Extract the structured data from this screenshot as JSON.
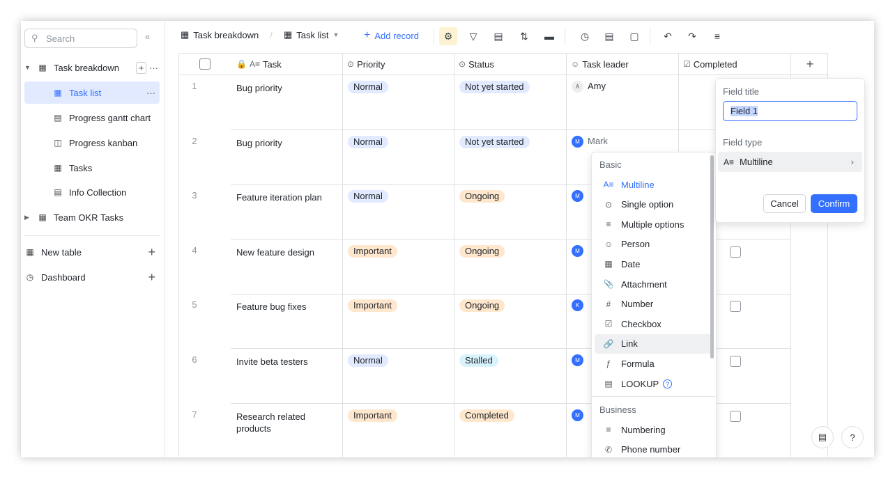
{
  "sidebar": {
    "search_placeholder": "Search",
    "items": [
      {
        "label": "Task breakdown",
        "icon": "table-icon"
      },
      {
        "label": "Task list",
        "icon": "grid-view-icon"
      },
      {
        "label": "Progress gantt chart",
        "icon": "gantt-icon"
      },
      {
        "label": "Progress kanban",
        "icon": "kanban-icon"
      },
      {
        "label": "Tasks",
        "icon": "form-icon"
      },
      {
        "label": "Info Collection",
        "icon": "form-collect-icon"
      },
      {
        "label": "Team OKR Tasks",
        "icon": "table-icon"
      }
    ],
    "new_table": "New table",
    "dashboard": "Dashboard"
  },
  "toolbar": {
    "breadcrumb_table": "Task breakdown",
    "view": "Task list",
    "add_record": "Add record"
  },
  "columns": [
    "Task",
    "Priority",
    "Status",
    "Task leader",
    "Completed"
  ],
  "rows": [
    {
      "n": "1",
      "task": "Bug priority",
      "priority": "Normal",
      "status": "Not yet started",
      "leader": "Amy",
      "avatar": "A"
    },
    {
      "n": "2",
      "task": "Bug priority",
      "priority": "Normal",
      "status": "Not yet started",
      "leader": "Mark",
      "avatar": "M"
    },
    {
      "n": "3",
      "task": "Feature iteration plan",
      "priority": "Normal",
      "status": "Ongoing",
      "leader": "",
      "avatar": "M"
    },
    {
      "n": "4",
      "task": "New feature design",
      "priority": "Important",
      "status": "Ongoing",
      "leader": "",
      "avatar": "M"
    },
    {
      "n": "5",
      "task": "Feature bug fixes",
      "priority": "Important",
      "status": "Ongoing",
      "leader": "",
      "avatar": "K"
    },
    {
      "n": "6",
      "task": "Invite beta testers",
      "priority": "Normal",
      "status": "Stalled",
      "leader": "",
      "avatar": "M"
    },
    {
      "n": "7",
      "task": "Research related products",
      "priority": "Important",
      "status": "Completed",
      "leader": "",
      "avatar": "M"
    }
  ],
  "colors": {
    "accent": "#3370ff",
    "normal": "#e1eaff",
    "important": "#fee7cd",
    "ongoing": "#fee7cd",
    "notstarted": "#e1eaff",
    "stalled": "#d9f3fd",
    "completed": "#fee7cd"
  },
  "field_panel": {
    "title_label": "Field title",
    "title_value": "Field 1",
    "type_label": "Field type",
    "type_value": "Multiline",
    "cancel": "Cancel",
    "confirm": "Confirm"
  },
  "type_menu": {
    "basic": "Basic",
    "basic_items": [
      "Multiline",
      "Single option",
      "Multiple options",
      "Person",
      "Date",
      "Attachment",
      "Number",
      "Checkbox",
      "Link",
      "Formula",
      "LOOKUP"
    ],
    "business": "Business",
    "business_items": [
      "Numbering",
      "Phone number"
    ]
  }
}
